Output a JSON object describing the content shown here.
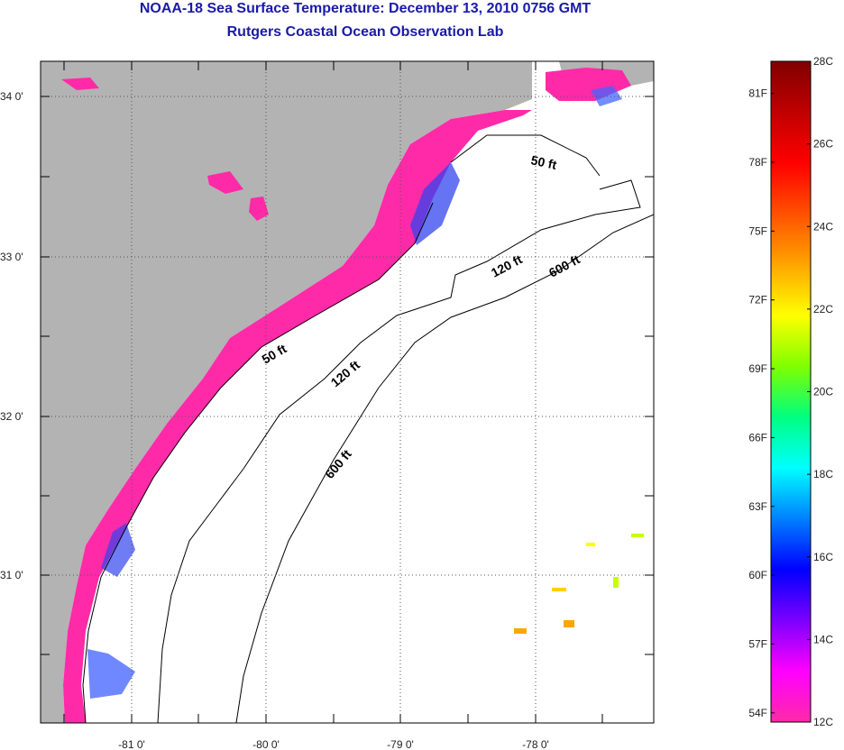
{
  "header": {
    "title": "NOAA-18 Sea Surface Temperature:  December 13, 2010 0756 GMT",
    "subtitle": "Rutgers Coastal Ocean Observation Lab"
  },
  "map": {
    "lon_ticks": [
      {
        "value": -81,
        "label": "-81 0'"
      },
      {
        "value": -80,
        "label": "-80 0'"
      },
      {
        "value": -79,
        "label": "-79 0'"
      },
      {
        "value": -78,
        "label": "-78 0'"
      }
    ],
    "lat_ticks": [
      {
        "value": 34,
        "label": "34 0'"
      },
      {
        "value": 33,
        "label": "33 0'"
      },
      {
        "value": 32,
        "label": "32 0'"
      },
      {
        "value": 31,
        "label": "31 0'"
      }
    ],
    "contour_labels": [
      "50 ft",
      "120 ft",
      "600 ft",
      "50 ft",
      "120 ft",
      "600 ft"
    ]
  },
  "colorbar": {
    "celsius_labels": [
      "28C",
      "26C",
      "24C",
      "22C",
      "20C",
      "18C",
      "16C",
      "14C",
      "12C"
    ],
    "fahrenheit_labels": [
      "81F",
      "78F",
      "75F",
      "72F",
      "69F",
      "66F",
      "63F",
      "60F",
      "57F",
      "54F"
    ],
    "colors": [
      "#ff2aa8",
      "#ff00ff",
      "#7b00ff",
      "#0000ff",
      "#0080ff",
      "#00ffff",
      "#00ff80",
      "#80ff00",
      "#ffff00",
      "#ffa500",
      "#ff5000",
      "#ff0000",
      "#c00000",
      "#800000"
    ]
  },
  "colors": {
    "land": "#b3b3b3",
    "ocean": "#ffffff",
    "coastal_sst": "#ff2aa8",
    "title": "#1a1aa8"
  }
}
